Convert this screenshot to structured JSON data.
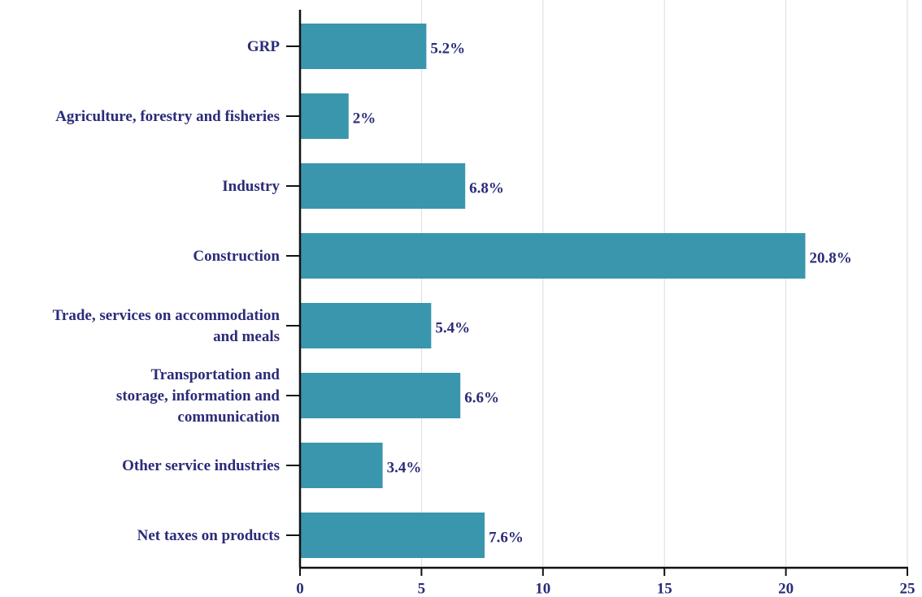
{
  "colors": {
    "bar": "#3a96ad",
    "text": "#2b2b7a",
    "axis": "#111111",
    "grid": "#dcdcdc"
  },
  "chart_data": {
    "type": "bar",
    "orientation": "horizontal",
    "categories": [
      "GRP",
      "Agriculture, forestry and fisheries",
      "Industry",
      "Construction",
      "Trade, services on accommodation and meals",
      "Transportation and storage, information and communication",
      "Other service industries",
      "Net taxes on products"
    ],
    "category_lines": [
      [
        "GRP"
      ],
      [
        "Agriculture, forestry and fisheries"
      ],
      [
        "Industry"
      ],
      [
        "Construction"
      ],
      [
        "Trade, services on accommodation",
        "and meals"
      ],
      [
        "Transportation and",
        "storage, information and",
        "communication"
      ],
      [
        "Other service industries"
      ],
      [
        "Net taxes on products"
      ]
    ],
    "values": [
      5.2,
      2,
      6.8,
      20.8,
      5.4,
      6.6,
      3.4,
      7.6
    ],
    "value_labels": [
      "5.2%",
      "2%",
      "6.8%",
      "20.8%",
      "5.4%",
      "6.6%",
      "3.4%",
      "7.6%"
    ],
    "xlim": [
      0,
      25
    ],
    "xticks": [
      0,
      5,
      10,
      15,
      20,
      25
    ],
    "xtick_labels": [
      "0",
      "5",
      "10",
      "15",
      "20",
      "25"
    ],
    "grid": true,
    "legend": "none"
  }
}
